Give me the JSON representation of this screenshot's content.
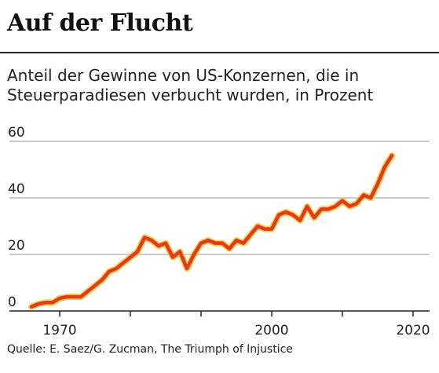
{
  "title": "Auf der Flucht",
  "subtitle": "Anteil der Gewinne von US-Konzernen, die in Steuerparadiesen verbucht wurden, in Prozent",
  "source": "Quelle: E. Saez/G. Zucman, The Triumph of Injustice",
  "colors": {
    "line": "#e23a1e",
    "glow": "#f7c52e",
    "grid": "#9a9a9a"
  },
  "chart_data": {
    "type": "line",
    "title": "Auf der Flucht",
    "ylabel": "",
    "xlabel": "",
    "ylim": [
      0,
      60
    ],
    "xlim": [
      1964,
      2022
    ],
    "yticks": [
      0,
      20,
      40,
      60
    ],
    "xticks_labeled": [
      1970,
      2000,
      2020
    ],
    "xticks_minor": [
      1980,
      1990,
      2010
    ],
    "grid": true,
    "series": [
      {
        "x": [
          1966,
          1967,
          1968,
          1969,
          1970,
          1971,
          1972,
          1973,
          1974,
          1975,
          1976,
          1977,
          1978,
          1979,
          1980,
          1981,
          1982,
          1983,
          1984,
          1985,
          1986,
          1987,
          1988,
          1989,
          1990,
          1991,
          1992,
          1993,
          1994,
          1995,
          1996,
          1997,
          1998,
          1999,
          2000,
          2001,
          2002,
          2003,
          2004,
          2005,
          2006,
          2007,
          2008,
          2009,
          2010,
          2011,
          2012,
          2013,
          2014,
          2015,
          2016,
          2017
        ],
        "y": [
          1.5,
          2.5,
          3,
          3,
          4.5,
          5,
          5,
          5,
          7,
          9,
          11,
          14,
          15,
          17,
          19,
          21,
          26,
          25,
          23,
          24,
          19,
          21,
          15,
          20,
          24,
          25,
          24,
          24,
          22,
          25,
          24,
          27,
          30,
          29,
          29,
          34,
          35,
          34,
          32,
          37,
          33,
          36,
          36,
          37,
          39,
          37,
          38,
          41,
          40,
          45,
          51,
          55
        ]
      }
    ]
  }
}
